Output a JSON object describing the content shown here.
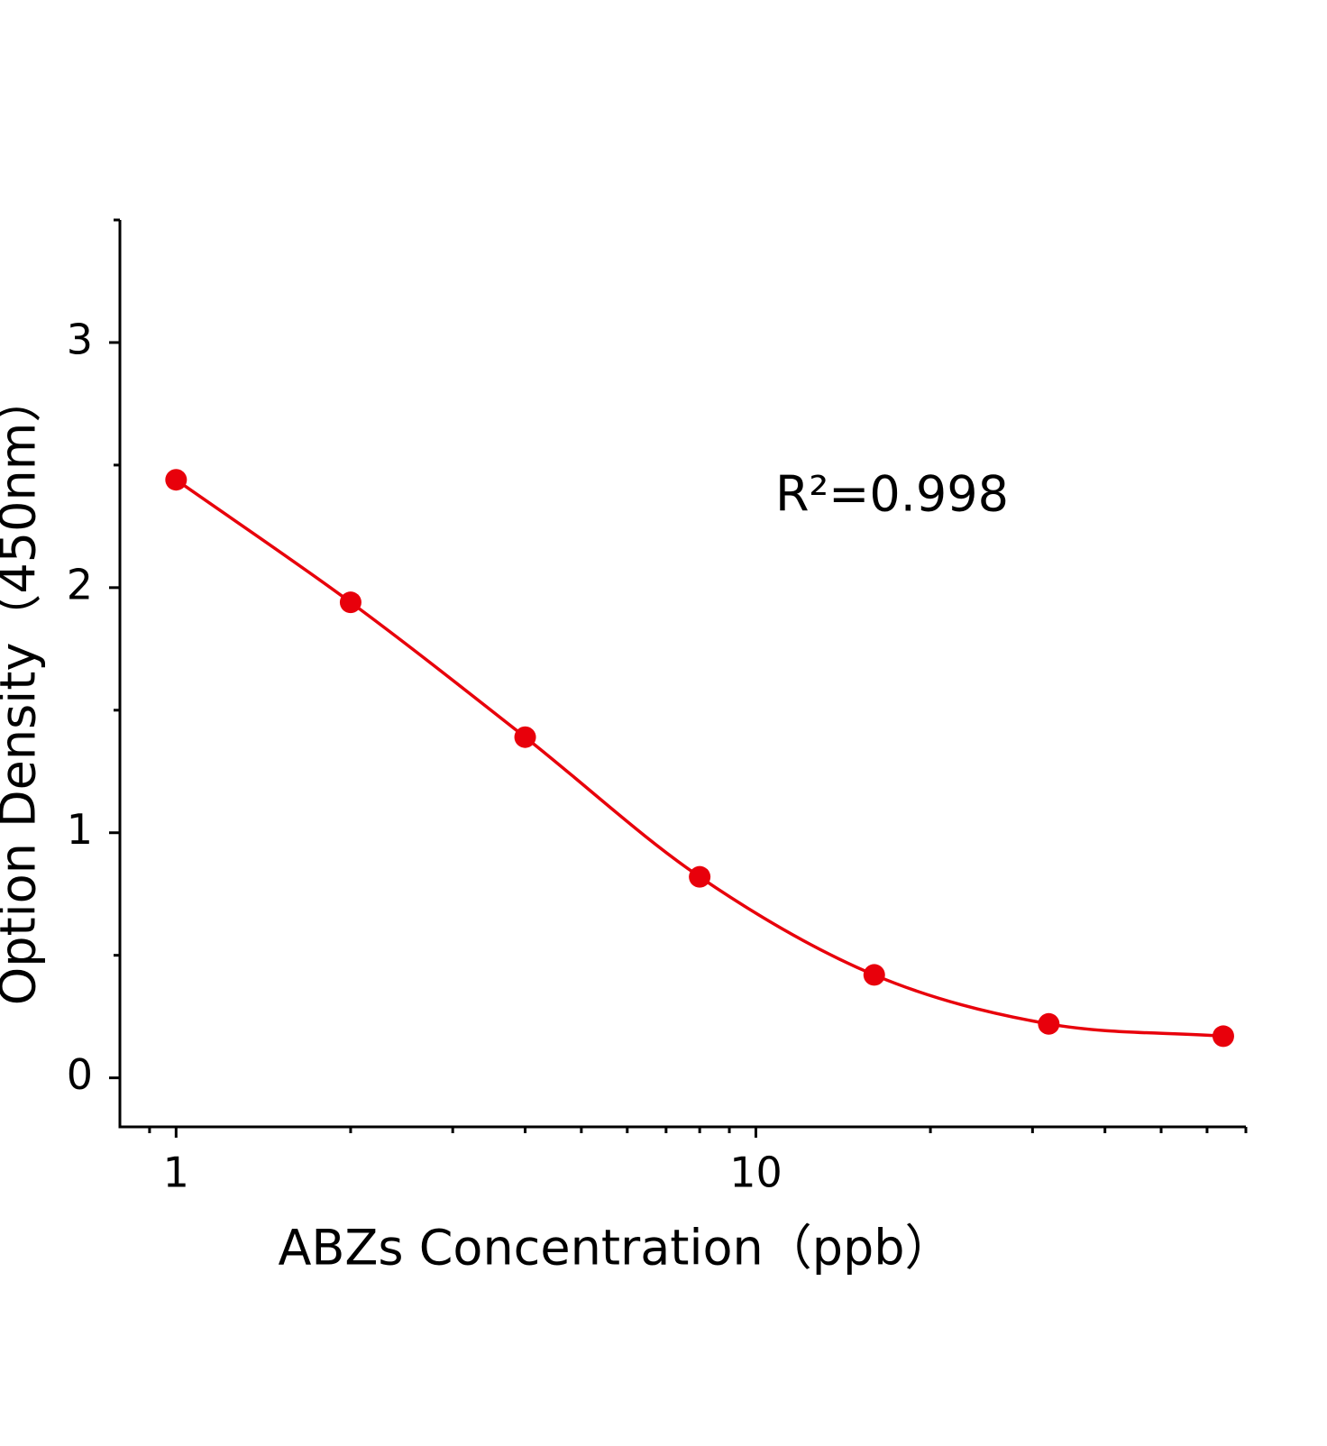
{
  "chart_data": {
    "type": "scatter",
    "xlabel": "ABZs Concentration（ppb）",
    "ylabel": "Option Density（450nm）",
    "annotation": "R²=0.998",
    "x": [
      1,
      2,
      4,
      8,
      16,
      32,
      64
    ],
    "series": [
      {
        "color": "#e8000b",
        "values": [
          2.44,
          1.94,
          1.39,
          0.82,
          0.42,
          0.22,
          0.17
        ]
      }
    ],
    "xscale": "log",
    "xlim": [
      0.8,
      70
    ],
    "xticks": [
      1,
      10
    ],
    "xminorticks": [
      0.9,
      2,
      3,
      4,
      5,
      6,
      7,
      8,
      9,
      20,
      30,
      40,
      50,
      60,
      70
    ],
    "ylim": [
      -0.2,
      3.5
    ],
    "yticks": [
      0,
      1,
      2,
      3
    ],
    "yminorticks": [
      0.5,
      1.5,
      2.5,
      3.5
    ],
    "fit_line": true,
    "grid": false
  }
}
